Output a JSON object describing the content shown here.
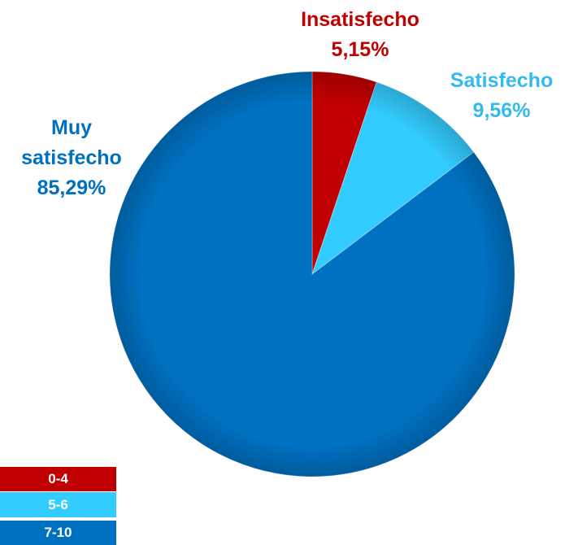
{
  "chart_data": {
    "type": "pie",
    "categories": [
      "Insatisfecho",
      "Satisfecho",
      "Muy satisfecho"
    ],
    "values": [
      5.15,
      9.56,
      85.29
    ],
    "value_labels": [
      "5,15%",
      "9,56%",
      "85,29%"
    ],
    "colors": [
      "#c00000",
      "#33ccff",
      "#0070c0"
    ],
    "label_colors": [
      "#c00000",
      "#33bbee",
      "#0070c0"
    ],
    "legend": [
      "0-4",
      "5-6",
      "7-10"
    ]
  }
}
